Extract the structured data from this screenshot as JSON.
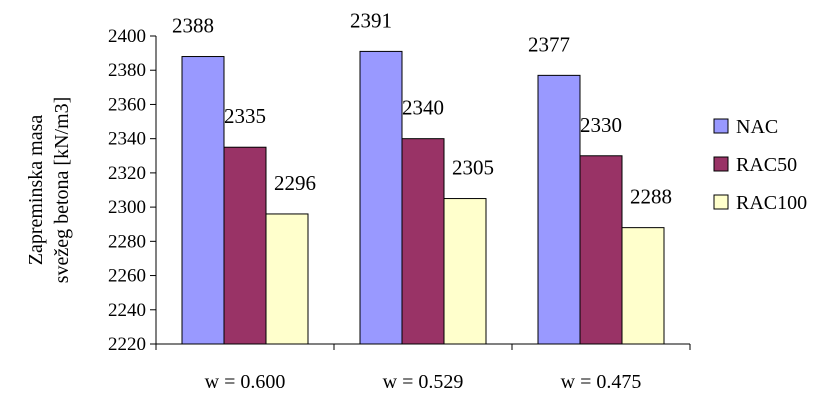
{
  "chart_data": {
    "type": "bar",
    "categories": [
      "w = 0.600",
      "w = 0.529",
      "w = 0.475"
    ],
    "series": [
      {
        "name": "NAC",
        "values": [
          2388,
          2391,
          2377
        ],
        "color": "#9999FF"
      },
      {
        "name": "RAC50",
        "values": [
          2335,
          2340,
          2330
        ],
        "color": "#993366"
      },
      {
        "name": "RAC100",
        "values": [
          2296,
          2305,
          2288
        ],
        "color": "#FFFFCC"
      }
    ],
    "data_labels": [
      "2388",
      "2335",
      "2296",
      "2391",
      "2340",
      "2305",
      "2377",
      "2330",
      "2288"
    ],
    "ylabel_lines": [
      "Zapreminska masa",
      "svežeg betona [kN/m3]"
    ],
    "ylim": [
      2220,
      2400
    ],
    "yticks": [
      "2220",
      "2240",
      "2260",
      "2280",
      "2300",
      "2320",
      "2340",
      "2360",
      "2380",
      "2400"
    ],
    "legend_position": "right",
    "grid": false
  }
}
